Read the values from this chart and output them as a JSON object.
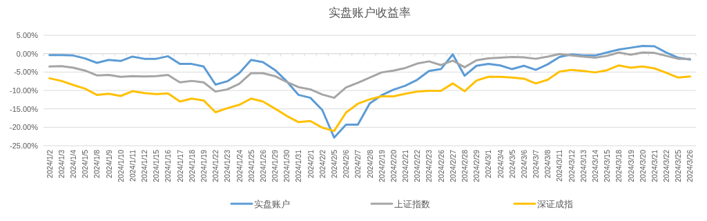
{
  "chart_data": {
    "type": "line",
    "title": "实盘账户收益率",
    "categories": [
      "2024/1/2",
      "2024/1/3",
      "2024/1/4",
      "2024/1/5",
      "2024/1/8",
      "2024/1/9",
      "2024/1/10",
      "2024/1/11",
      "2024/1/12",
      "2024/1/15",
      "2024/1/16",
      "2024/1/17",
      "2024/1/18",
      "2024/1/19",
      "2024/1/22",
      "2024/1/23",
      "2024/1/24",
      "2024/1/25",
      "2024/1/26",
      "2024/1/29",
      "2024/1/30",
      "2024/1/31",
      "2024/2/1",
      "2024/2/2",
      "2024/2/5",
      "2024/2/6",
      "2024/2/7",
      "2024/2/8",
      "2024/2/19",
      "2024/2/20",
      "2024/2/21",
      "2024/2/22",
      "2024/2/23",
      "2024/2/26",
      "2024/2/27",
      "2024/2/28",
      "2024/2/29",
      "2024/3/1",
      "2024/3/4",
      "2024/3/5",
      "2024/3/6",
      "2024/3/7",
      "2024/3/8",
      "2024/3/11",
      "2024/3/12",
      "2024/3/13",
      "2024/3/14",
      "2024/3/15",
      "2024/3/18",
      "2024/3/19",
      "2024/3/20",
      "2024/3/21",
      "2024/3/22",
      "2024/3/25",
      "2024/3/26"
    ],
    "series": [
      {
        "name": "实盘账户",
        "color": "#5b9bd5",
        "values": [
          -0.4,
          -0.4,
          -0.5,
          -1.3,
          -2.5,
          -1.7,
          -2.0,
          -0.8,
          -1.4,
          -1.4,
          -0.7,
          -2.8,
          -2.8,
          -3.5,
          -8.4,
          -7.5,
          -5.3,
          -1.7,
          -2.3,
          -4.4,
          -7.5,
          -11.2,
          -12.0,
          -15.3,
          -22.8,
          -19.3,
          -19.3,
          -13.5,
          -11.3,
          -9.8,
          -8.7,
          -7.1,
          -4.7,
          -4.2,
          -0.2,
          -6.0,
          -3.3,
          -2.8,
          -3.2,
          -4.2,
          -3.3,
          -4.4,
          -2.9,
          -0.9,
          -0.2,
          -0.5,
          -0.5,
          0.3,
          1.1,
          1.6,
          2.1,
          2.0,
          0.3,
          -1.1,
          -1.6
        ]
      },
      {
        "name": "上证指数",
        "color": "#a5a5a5",
        "values": [
          -3.5,
          -3.4,
          -3.8,
          -4.6,
          -5.9,
          -5.8,
          -6.3,
          -6.1,
          -6.2,
          -6.1,
          -5.8,
          -7.8,
          -7.4,
          -7.8,
          -10.3,
          -9.7,
          -8.2,
          -5.3,
          -5.3,
          -6.1,
          -7.7,
          -9.1,
          -9.7,
          -11.1,
          -12.0,
          -9.2,
          -7.9,
          -6.5,
          -5.1,
          -4.6,
          -3.9,
          -2.7,
          -2.1,
          -3.1,
          -1.9,
          -3.7,
          -1.8,
          -1.3,
          -1.1,
          -0.9,
          -1.0,
          -1.4,
          -0.8,
          -0.1,
          -0.5,
          -0.8,
          -1.1,
          -0.6,
          0.3,
          -0.3,
          0.3,
          0.2,
          -0.6,
          -1.4,
          -1.4
        ]
      },
      {
        "name": "深证成指",
        "color": "#ffc000",
        "values": [
          -6.7,
          -7.4,
          -8.5,
          -9.5,
          -11.2,
          -10.9,
          -11.5,
          -10.2,
          -10.7,
          -11.0,
          -10.8,
          -13.0,
          -12.2,
          -12.7,
          -15.9,
          -14.8,
          -13.9,
          -12.2,
          -13.0,
          -14.9,
          -16.9,
          -18.6,
          -18.3,
          -20.1,
          -21.0,
          -16.0,
          -13.6,
          -12.4,
          -11.6,
          -11.6,
          -10.9,
          -10.3,
          -10.1,
          -10.1,
          -8.1,
          -10.2,
          -7.3,
          -6.3,
          -6.3,
          -6.5,
          -6.8,
          -8.1,
          -7.1,
          -4.9,
          -4.4,
          -4.7,
          -5.1,
          -4.5,
          -3.2,
          -3.8,
          -3.5,
          -4.0,
          -5.2,
          -6.5,
          -6.2
        ]
      }
    ],
    "ylim": [
      -25,
      5
    ],
    "yticks": [
      {
        "value": 5,
        "label": "5.00%"
      },
      {
        "value": 0,
        "label": "0.00%"
      },
      {
        "value": -5,
        "label": "-5.00%"
      },
      {
        "value": -10,
        "label": "-10.00%"
      },
      {
        "value": -15,
        "label": "-15.00%"
      },
      {
        "value": -20,
        "label": "-20.00%"
      },
      {
        "value": -25,
        "label": "-25.00%"
      }
    ],
    "grid": "y",
    "legend": "bottom",
    "marker": "none",
    "line_style": "solid"
  }
}
